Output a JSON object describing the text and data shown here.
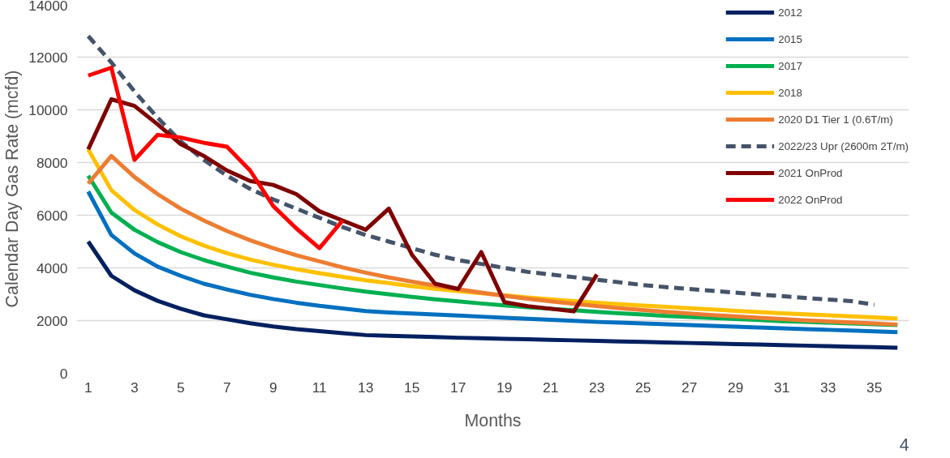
{
  "chart_data": {
    "type": "line",
    "xlabel": "Months",
    "ylabel": "Calendar Day Gas Rate (mcfd)",
    "x": [
      1,
      2,
      3,
      4,
      5,
      6,
      7,
      8,
      9,
      10,
      11,
      12,
      13,
      14,
      15,
      16,
      17,
      18,
      19,
      20,
      21,
      22,
      23,
      24,
      25,
      26,
      27,
      28,
      29,
      30,
      31,
      32,
      33,
      34,
      35,
      36
    ],
    "xlim": [
      0.5,
      36.5
    ],
    "xticks": [
      1,
      3,
      5,
      7,
      9,
      11,
      13,
      15,
      17,
      19,
      21,
      23,
      25,
      27,
      29,
      31,
      33,
      35
    ],
    "ylim": [
      0,
      14000
    ],
    "yticks": [
      0,
      2000,
      4000,
      6000,
      8000,
      10000,
      12000,
      14000
    ],
    "grid": "y",
    "legend": "top right",
    "marker": "none",
    "annotations": [
      "4"
    ],
    "series": [
      {
        "name": "2012",
        "color": "#002060",
        "values": [
          5000,
          3700,
          3150,
          2750,
          2450,
          2200,
          2050,
          1900,
          1780,
          1680,
          1600,
          1520,
          1450,
          1420,
          1400,
          1380,
          1350,
          1330,
          1310,
          1290,
          1270,
          1250,
          1230,
          1210,
          1190,
          1170,
          1150,
          1130,
          1110,
          1090,
          1070,
          1050,
          1030,
          1010,
          990,
          970
        ]
      },
      {
        "name": "2015",
        "color": "#0070c0",
        "values": [
          6900,
          5250,
          4550,
          4050,
          3700,
          3400,
          3180,
          2980,
          2820,
          2680,
          2560,
          2460,
          2360,
          2310,
          2270,
          2230,
          2190,
          2150,
          2110,
          2070,
          2030,
          1990,
          1950,
          1920,
          1890,
          1860,
          1830,
          1800,
          1770,
          1740,
          1710,
          1680,
          1650,
          1620,
          1590,
          1560
        ]
      },
      {
        "name": "2017",
        "color": "#00b050",
        "values": [
          7500,
          6100,
          5450,
          4980,
          4600,
          4300,
          4050,
          3820,
          3640,
          3480,
          3350,
          3220,
          3100,
          3000,
          2900,
          2810,
          2730,
          2650,
          2580,
          2510,
          2450,
          2390,
          2330,
          2280,
          2230,
          2180,
          2140,
          2100,
          2060,
          2020,
          1980,
          1950,
          1920,
          1890,
          1860,
          1830
        ]
      },
      {
        "name": "2018",
        "color": "#ffc000",
        "values": [
          8500,
          6950,
          6200,
          5650,
          5200,
          4850,
          4560,
          4320,
          4120,
          3950,
          3800,
          3660,
          3530,
          3420,
          3310,
          3210,
          3120,
          3040,
          2960,
          2880,
          2810,
          2740,
          2680,
          2620,
          2570,
          2520,
          2470,
          2420,
          2370,
          2320,
          2280,
          2240,
          2200,
          2160,
          2120,
          2080
        ]
      },
      {
        "name": "2020 D1 Tier 1 (0.6T/m)",
        "color": "#ed7d31",
        "values": [
          7200,
          8250,
          7450,
          6800,
          6250,
          5800,
          5400,
          5050,
          4750,
          4480,
          4250,
          4020,
          3820,
          3640,
          3480,
          3330,
          3190,
          3060,
          2940,
          2830,
          2730,
          2640,
          2550,
          2470,
          2400,
          2330,
          2270,
          2210,
          2160,
          2110,
          2060,
          2010,
          1970,
          1930,
          1890,
          1850
        ]
      },
      {
        "name": "2022/23 Upr (2600m 2T/m)",
        "color": "#44546a",
        "line_style": "dashed",
        "values": [
          12800,
          11800,
          10700,
          9700,
          8800,
          8100,
          7500,
          7000,
          6600,
          6250,
          5900,
          5550,
          5250,
          5000,
          4750,
          4500,
          4300,
          4150,
          4000,
          3850,
          3750,
          3650,
          3550,
          3450,
          3350,
          3270,
          3200,
          3130,
          3060,
          2990,
          2930,
          2860,
          2800,
          2740,
          2600,
          null
        ]
      },
      {
        "name": "2021 OnProd",
        "color": "#7f0000",
        "values": [
          8500,
          10400,
          10150,
          9450,
          8700,
          8250,
          7700,
          7300,
          7150,
          6800,
          6150,
          5800,
          5450,
          6250,
          4500,
          3400,
          3200,
          4600,
          2700,
          2550,
          2450,
          2350,
          3750,
          null,
          null,
          null,
          null,
          null,
          null,
          null,
          null,
          null,
          null,
          null,
          null,
          null
        ]
      },
      {
        "name": "2022 OnProd",
        "color": "#ff0000",
        "values": [
          11300,
          11600,
          8100,
          9050,
          8950,
          8750,
          8600,
          7700,
          6350,
          5500,
          4750,
          5800,
          null,
          null,
          null,
          null,
          null,
          null,
          null,
          null,
          null,
          null,
          null,
          null,
          null,
          null,
          null,
          null,
          null,
          null,
          null,
          null,
          null,
          null,
          null,
          null
        ]
      }
    ]
  }
}
